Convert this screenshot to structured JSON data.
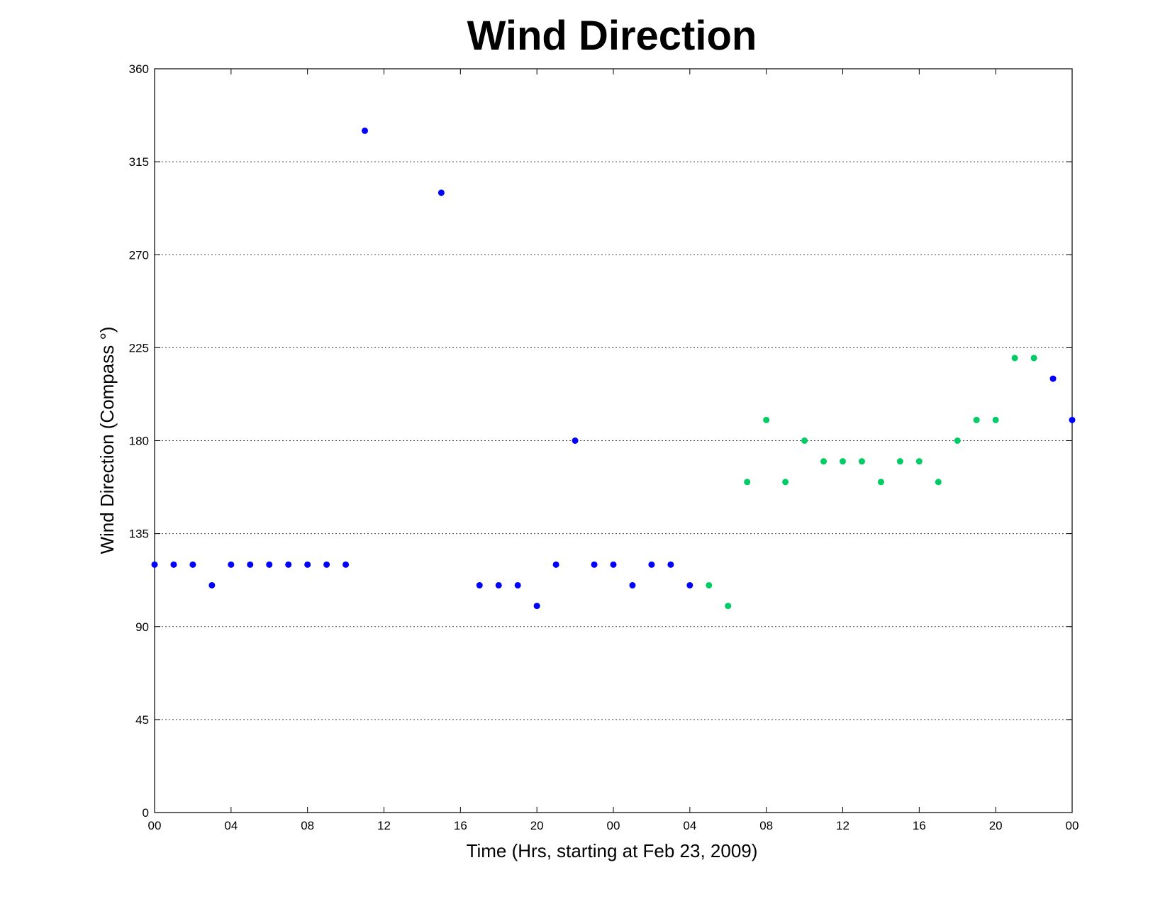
{
  "chart_data": {
    "type": "scatter",
    "title": "Wind Direction",
    "xlabel": "Time (Hrs, starting at Feb 23, 2009)",
    "ylabel": "Wind Direction (Compass  °)",
    "xlim": [
      0,
      48
    ],
    "ylim": [
      0,
      360
    ],
    "x_tick_values": [
      0,
      4,
      8,
      12,
      16,
      20,
      24,
      28,
      32,
      36,
      40,
      44,
      48
    ],
    "x_tick_labels": [
      "00",
      "04",
      "08",
      "12",
      "16",
      "20",
      "00",
      "04",
      "08",
      "12",
      "16",
      "20",
      "00"
    ],
    "y_ticks": [
      0,
      45,
      90,
      135,
      180,
      225,
      270,
      315,
      360
    ],
    "grid": "horizontal dotted",
    "colors": {
      "blue": "#0000ff",
      "green": "#00cc66"
    },
    "points": [
      {
        "x": 0,
        "y": 120,
        "color": "blue"
      },
      {
        "x": 1,
        "y": 120,
        "color": "blue"
      },
      {
        "x": 2,
        "y": 120,
        "color": "blue"
      },
      {
        "x": 3,
        "y": 110,
        "color": "blue"
      },
      {
        "x": 4,
        "y": 120,
        "color": "blue"
      },
      {
        "x": 5,
        "y": 120,
        "color": "blue"
      },
      {
        "x": 6,
        "y": 120,
        "color": "blue"
      },
      {
        "x": 7,
        "y": 120,
        "color": "blue"
      },
      {
        "x": 8,
        "y": 120,
        "color": "blue"
      },
      {
        "x": 9,
        "y": 120,
        "color": "blue"
      },
      {
        "x": 10,
        "y": 120,
        "color": "blue"
      },
      {
        "x": 11,
        "y": 330,
        "color": "blue"
      },
      {
        "x": 15,
        "y": 300,
        "color": "blue"
      },
      {
        "x": 17,
        "y": 110,
        "color": "blue"
      },
      {
        "x": 18,
        "y": 110,
        "color": "blue"
      },
      {
        "x": 19,
        "y": 110,
        "color": "blue"
      },
      {
        "x": 20,
        "y": 100,
        "color": "blue"
      },
      {
        "x": 21,
        "y": 120,
        "color": "blue"
      },
      {
        "x": 22,
        "y": 180,
        "color": "blue"
      },
      {
        "x": 23,
        "y": 120,
        "color": "blue"
      },
      {
        "x": 24,
        "y": 120,
        "color": "blue"
      },
      {
        "x": 25,
        "y": 110,
        "color": "blue"
      },
      {
        "x": 26,
        "y": 120,
        "color": "blue"
      },
      {
        "x": 27,
        "y": 120,
        "color": "blue"
      },
      {
        "x": 28,
        "y": 110,
        "color": "blue"
      },
      {
        "x": 29,
        "y": 110,
        "color": "green"
      },
      {
        "x": 30,
        "y": 100,
        "color": "green"
      },
      {
        "x": 31,
        "y": 160,
        "color": "green"
      },
      {
        "x": 32,
        "y": 190,
        "color": "green"
      },
      {
        "x": 33,
        "y": 160,
        "color": "green"
      },
      {
        "x": 34,
        "y": 180,
        "color": "green"
      },
      {
        "x": 35,
        "y": 170,
        "color": "green"
      },
      {
        "x": 36,
        "y": 170,
        "color": "green"
      },
      {
        "x": 37,
        "y": 170,
        "color": "green"
      },
      {
        "x": 38,
        "y": 160,
        "color": "green"
      },
      {
        "x": 39,
        "y": 170,
        "color": "green"
      },
      {
        "x": 40,
        "y": 170,
        "color": "green"
      },
      {
        "x": 41,
        "y": 160,
        "color": "green"
      },
      {
        "x": 42,
        "y": 180,
        "color": "green"
      },
      {
        "x": 43,
        "y": 190,
        "color": "green"
      },
      {
        "x": 44,
        "y": 190,
        "color": "green"
      },
      {
        "x": 45,
        "y": 220,
        "color": "green"
      },
      {
        "x": 46,
        "y": 220,
        "color": "green"
      },
      {
        "x": 47,
        "y": 210,
        "color": "blue"
      },
      {
        "x": 48,
        "y": 190,
        "color": "blue"
      }
    ]
  }
}
